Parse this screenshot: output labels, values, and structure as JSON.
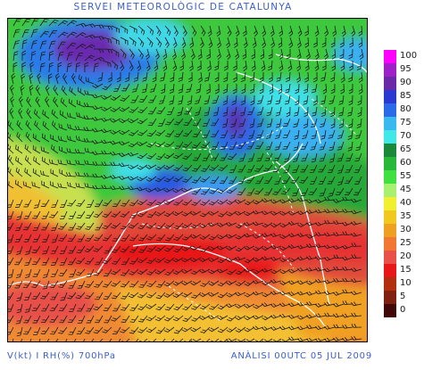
{
  "header": {
    "title": "SERVEI METEOROLÒGIC DE CATALUNYA"
  },
  "footer": {
    "left": "V(kt) I RH(%) 700hPa",
    "right": "ANÀLISI 00UTC 05 JUL 2009"
  },
  "legend": {
    "items": [
      {
        "label": "100",
        "color": "#ff00ff"
      },
      {
        "label": "95",
        "color": "#a020c8"
      },
      {
        "label": "90",
        "color": "#6a2aa8"
      },
      {
        "label": "85",
        "color": "#2a3ad0"
      },
      {
        "label": "80",
        "color": "#2a6ae8"
      },
      {
        "label": "75",
        "color": "#3ab8f0"
      },
      {
        "label": "70",
        "color": "#40e8e8"
      },
      {
        "label": "65",
        "color": "#1a8a3a"
      },
      {
        "label": "60",
        "color": "#2ab83a"
      },
      {
        "label": "55",
        "color": "#40e040"
      },
      {
        "label": "45",
        "color": "#a8f070"
      },
      {
        "label": "40",
        "color": "#f0f030"
      },
      {
        "label": "35",
        "color": "#f0c820"
      },
      {
        "label": "30",
        "color": "#f0a020"
      },
      {
        "label": "25",
        "color": "#f07830"
      },
      {
        "label": "20",
        "color": "#e85048"
      },
      {
        "label": "15",
        "color": "#e81818"
      },
      {
        "label": "10",
        "color": "#b03010"
      },
      {
        "label": "5",
        "color": "#802010"
      },
      {
        "label": "0",
        "color": "#400808"
      }
    ]
  }
}
